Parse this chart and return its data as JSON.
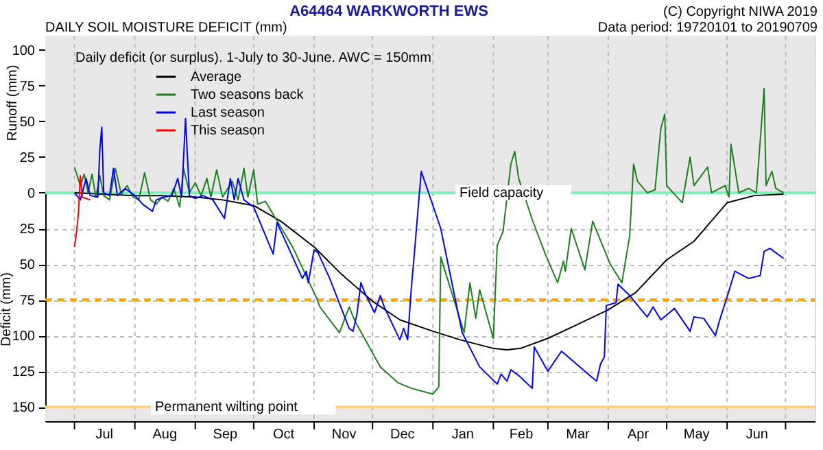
{
  "chart_data": {
    "type": "line",
    "title": "A64464  WARKWORTH EWS",
    "subtitle": "DAILY SOIL MOISTURE DEFICIT (mm)",
    "ylabel": "Deficit (mm)",
    "annotations": [
      "(C) Copyright NIWA 2019",
      "Data period:  19720101  to  20190709",
      "Daily deficit (or surplus). 1-July to 30-June.  AWC = 150mm",
      "Runoff (mm)"
    ],
    "xlim": [
      "2018-06-16",
      "2019-07-16"
    ],
    "xticks": [
      {
        "value": "2018-07-01",
        "label": null
      },
      {
        "value": "2018-07-16",
        "label": "Jul"
      },
      {
        "value": "2018-08-01",
        "label": null
      },
      {
        "value": "2018-08-16",
        "label": "Aug"
      },
      {
        "value": "2018-09-01",
        "label": null
      },
      {
        "value": "2018-09-16",
        "label": "Sep"
      },
      {
        "value": "2018-10-01",
        "label": null
      },
      {
        "value": "2018-10-16",
        "label": "Oct"
      },
      {
        "value": "2018-11-01",
        "label": null
      },
      {
        "value": "2018-11-16",
        "label": "Nov"
      },
      {
        "value": "2018-12-01",
        "label": null
      },
      {
        "value": "2018-12-16",
        "label": "Dec"
      },
      {
        "value": "2019-01-01",
        "label": null
      },
      {
        "value": "2019-01-16",
        "label": "Jan"
      },
      {
        "value": "2019-02-01",
        "label": null
      },
      {
        "value": "2019-02-15",
        "label": "Feb"
      },
      {
        "value": "2019-03-01",
        "label": null
      },
      {
        "value": "2019-03-16",
        "label": "Mar"
      },
      {
        "value": "2019-04-01",
        "label": null
      },
      {
        "value": "2019-04-16",
        "label": "Apr"
      },
      {
        "value": "2019-05-01",
        "label": null
      },
      {
        "value": "2019-05-16",
        "label": "May"
      },
      {
        "value": "2019-06-01",
        "label": null
      },
      {
        "value": "2019-06-16",
        "label": "Jun"
      },
      {
        "value": "2019-07-01",
        "label": null
      }
    ],
    "ylim": [
      -160,
      110
    ],
    "yticks": [
      100,
      75,
      50,
      25,
      0,
      {
        "value": -25,
        "label": "25"
      },
      {
        "value": -50,
        "label": "50"
      },
      {
        "value": -75,
        "label": "75"
      },
      {
        "value": -100,
        "label": "100"
      },
      {
        "value": -125,
        "label": "125"
      },
      {
        "value": -150,
        "label": "150"
      }
    ],
    "grid": true,
    "legend": "top left",
    "bands": [
      {
        "axis": "y",
        "from": 0,
        "to": 110,
        "color": "#e8e8e8"
      },
      {
        "axis": "y",
        "from": -160,
        "to": -150,
        "color": "#e8e8e8"
      }
    ],
    "ref_lines": [
      {
        "axis": "y",
        "value": 0,
        "label": "Field capacity",
        "color": "#80f0b8"
      },
      {
        "axis": "y",
        "value": -75,
        "color": "#ffa500",
        "line_style": "dashed"
      },
      {
        "axis": "y",
        "value": -150,
        "label": "Permanent wilting point",
        "color": "#ffd080"
      }
    ],
    "series": [
      {
        "name": "Average",
        "color": "#000000",
        "x": [
          "2018-07-01",
          "2018-07-15",
          "2018-08-01",
          "2018-08-15",
          "2018-09-01",
          "2018-09-15",
          "2018-10-01",
          "2018-10-15",
          "2018-11-01",
          "2018-11-15",
          "2018-12-01",
          "2018-12-15",
          "2019-01-01",
          "2019-01-15",
          "2019-02-01",
          "2019-02-08",
          "2019-02-15",
          "2019-03-01",
          "2019-03-15",
          "2019-04-01",
          "2019-04-15",
          "2019-05-01",
          "2019-05-15",
          "2019-06-01",
          "2019-06-15",
          "2019-06-30"
        ],
        "values": [
          0,
          -1,
          -2,
          -2,
          -3,
          -5,
          -9,
          -20,
          -38,
          -57,
          -76,
          -89,
          -97,
          -103,
          -109,
          -110,
          -109,
          -102,
          -93,
          -82,
          -70,
          -47,
          -34,
          -7,
          -2,
          -1
        ]
      },
      {
        "name": "Two seasons back",
        "color": "#1f7f1f",
        "x": [
          "2018-07-01",
          "2018-07-04",
          "2018-07-06",
          "2018-07-08",
          "2018-07-10",
          "2018-07-12",
          "2018-07-14",
          "2018-07-16",
          "2018-07-19",
          "2018-07-22",
          "2018-07-25",
          "2018-07-28",
          "2018-07-31",
          "2018-08-03",
          "2018-08-06",
          "2018-08-09",
          "2018-08-12",
          "2018-08-15",
          "2018-08-18",
          "2018-08-21",
          "2018-08-24",
          "2018-08-26",
          "2018-08-29",
          "2018-09-01",
          "2018-09-04",
          "2018-09-07",
          "2018-09-09",
          "2018-09-12",
          "2018-09-15",
          "2018-09-20",
          "2018-09-23",
          "2018-09-26",
          "2018-09-28",
          "2018-10-01",
          "2018-10-03",
          "2018-10-07",
          "2018-10-21",
          "2018-11-02",
          "2018-11-04",
          "2018-11-14",
          "2018-11-19",
          "2018-11-22",
          "2018-12-05",
          "2018-12-14",
          "2018-12-21",
          "2019-01-01",
          "2019-01-04",
          "2019-01-05",
          "2019-01-17",
          "2019-01-20",
          "2019-01-23",
          "2019-01-25",
          "2019-02-01",
          "2019-02-03",
          "2019-02-06",
          "2019-02-10",
          "2019-02-12",
          "2019-02-14",
          "2019-02-21",
          "2019-02-28",
          "2019-03-06",
          "2019-03-09",
          "2019-03-10",
          "2019-03-13",
          "2019-03-20",
          "2019-03-24",
          "2019-04-02",
          "2019-04-08",
          "2019-04-12",
          "2019-04-14",
          "2019-04-16",
          "2019-04-21",
          "2019-04-25",
          "2019-04-28",
          "2019-04-30",
          "2019-05-01",
          "2019-05-09",
          "2019-05-13",
          "2019-05-15",
          "2019-05-22",
          "2019-05-24",
          "2019-05-31",
          "2019-06-02",
          "2019-06-03",
          "2019-06-07",
          "2019-06-12",
          "2019-06-16",
          "2019-06-20",
          "2019-06-21",
          "2019-06-24",
          "2019-06-26",
          "2019-06-30"
        ],
        "values": [
          18,
          5,
          13,
          0,
          13,
          -3,
          12,
          -2,
          -5,
          17,
          -1,
          5,
          -3,
          -5,
          14,
          -5,
          -8,
          -3,
          -6,
          3,
          -10,
          17,
          0,
          7,
          -2,
          10,
          -3,
          16,
          -3,
          8,
          -5,
          17,
          -3,
          16,
          -8,
          -6,
          -38,
          -73,
          -80,
          -98,
          -80,
          -90,
          -122,
          -133,
          -137,
          -141,
          -136,
          -45,
          -98,
          -63,
          -88,
          -68,
          -102,
          -37,
          -27,
          20,
          29,
          10,
          -19,
          -44,
          -63,
          -48,
          -55,
          -25,
          -54,
          -20,
          -50,
          -63,
          -30,
          20,
          8,
          0,
          2,
          45,
          55,
          5,
          -7,
          25,
          5,
          18,
          0,
          5,
          -3,
          34,
          0,
          3,
          0,
          73,
          5,
          15,
          3,
          0
        ]
      },
      {
        "name": "Last season",
        "color": "#0000ff",
        "x": [
          "2018-07-01",
          "2018-07-04",
          "2018-07-07",
          "2018-07-09",
          "2018-07-13",
          "2018-07-14",
          "2018-07-15",
          "2018-07-16",
          "2018-07-19",
          "2018-07-21",
          "2018-07-23",
          "2018-07-27",
          "2018-08-01",
          "2018-08-05",
          "2018-08-10",
          "2018-08-12",
          "2018-08-16",
          "2018-08-20",
          "2018-08-23",
          "2018-08-25",
          "2018-08-27",
          "2018-08-29",
          "2018-09-01",
          "2018-09-05",
          "2018-09-10",
          "2018-09-16",
          "2018-09-19",
          "2018-09-21",
          "2018-09-23",
          "2018-09-26",
          "2018-10-01",
          "2018-10-11",
          "2018-10-13",
          "2018-10-26",
          "2018-10-28",
          "2018-10-29",
          "2018-11-01",
          "2018-11-03",
          "2018-11-09",
          "2018-11-19",
          "2018-11-21",
          "2018-11-23",
          "2018-11-25",
          "2018-11-27",
          "2018-12-02",
          "2018-12-05",
          "2018-12-07",
          "2018-12-15",
          "2018-12-17",
          "2018-12-19",
          "2018-12-21",
          "2018-12-22",
          "2018-12-26",
          "2019-01-05",
          "2019-01-16",
          "2019-01-25",
          "2019-02-03",
          "2019-02-05",
          "2019-02-08",
          "2019-02-10",
          "2019-02-14",
          "2019-02-21",
          "2019-02-22",
          "2019-03-01",
          "2019-03-08",
          "2019-03-26",
          "2019-03-28",
          "2019-03-30",
          "2019-03-31",
          "2019-04-05",
          "2019-04-06",
          "2019-04-12",
          "2019-04-21",
          "2019-04-24",
          "2019-04-28",
          "2019-05-05",
          "2019-05-13",
          "2019-05-15",
          "2019-05-20",
          "2019-05-26",
          "2019-05-28",
          "2019-06-01",
          "2019-06-05",
          "2019-06-12",
          "2019-06-18",
          "2019-06-20",
          "2019-06-23",
          "2019-06-30"
        ],
        "values": [
          0,
          -5,
          10,
          -2,
          -3,
          30,
          46,
          0,
          -2,
          17,
          -2,
          3,
          -2,
          -8,
          -13,
          -5,
          -3,
          -2,
          10,
          -3,
          52,
          -2,
          -4,
          -2,
          -5,
          -18,
          10,
          -5,
          10,
          -5,
          -10,
          -43,
          -21,
          -60,
          -55,
          -63,
          -40,
          -42,
          -60,
          -95,
          -97,
          -85,
          -63,
          -70,
          -84,
          -72,
          -80,
          -103,
          -95,
          -103,
          -65,
          -50,
          15,
          -25,
          -98,
          -122,
          -134,
          -127,
          -132,
          -124,
          -128,
          -137,
          -108,
          -125,
          -111,
          -132,
          -120,
          -115,
          -79,
          -77,
          -64,
          -72,
          -87,
          -80,
          -89,
          -81,
          -97,
          -87,
          -88,
          -100,
          -90,
          -73,
          -55,
          -60,
          -58,
          -41,
          -39,
          -46
        ]
      },
      {
        "name": "This season",
        "color": "#ff0000",
        "x": [
          "2018-07-01",
          "2018-07-02",
          "2018-07-03",
          "2018-07-04",
          "2018-07-05",
          "2018-07-09"
        ],
        "values": [
          -38,
          -28,
          -15,
          12,
          -3,
          -5
        ]
      }
    ]
  }
}
